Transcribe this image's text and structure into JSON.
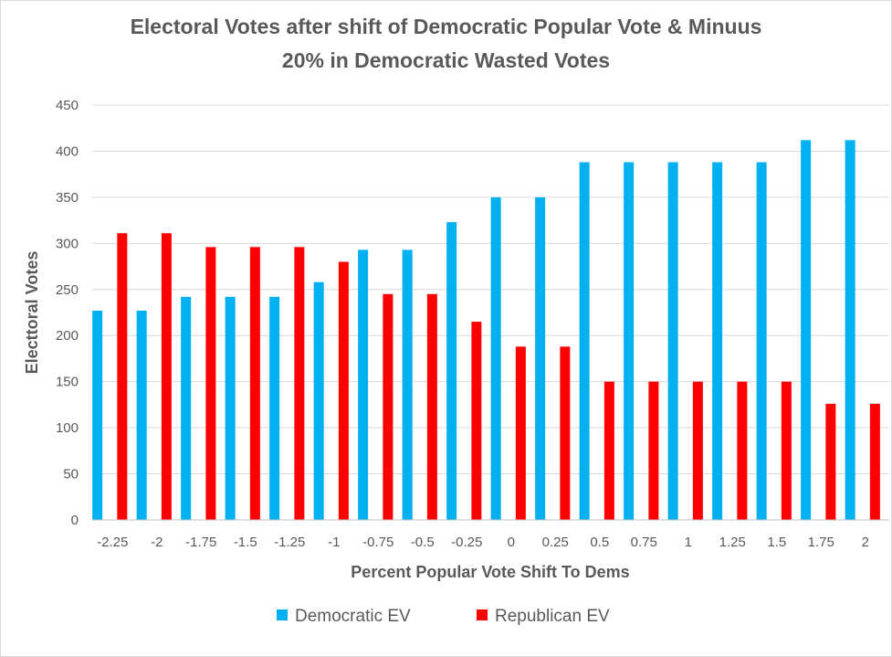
{
  "chart_data": {
    "type": "bar",
    "title_lines": [
      "Electoral Votes after shift of Democratic  Popular Vote & Minuus",
      "20% in Democratic Wasted Votes"
    ],
    "xlabel": "Percent Popular Vote Shift To Dems",
    "ylabel": "Electtoral Votes",
    "ylim": [
      0,
      450
    ],
    "yticks": [
      0,
      50,
      100,
      150,
      200,
      250,
      300,
      350,
      400,
      450
    ],
    "grid": true,
    "legend_position": "bottom",
    "categories": [
      "-2.25",
      "-2",
      "-1.75",
      "-1.5",
      "-1.25",
      "-1",
      "-0.75",
      "-0.5",
      "-0.25",
      "0",
      "0.25",
      "0.5",
      "0.75",
      "1",
      "1.25",
      "1.5",
      "1.75",
      "2"
    ],
    "series": [
      {
        "name": "Democratic EV",
        "color": "#00b0f0",
        "values": [
          227,
          227,
          242,
          242,
          242,
          258,
          293,
          293,
          323,
          350,
          350,
          388,
          388,
          388,
          388,
          388,
          412,
          412
        ]
      },
      {
        "name": "Republican EV",
        "color": "#ff0000",
        "values": [
          311,
          311,
          296,
          296,
          296,
          280,
          245,
          245,
          215,
          188,
          188,
          150,
          150,
          150,
          150,
          150,
          126,
          126
        ]
      }
    ]
  }
}
